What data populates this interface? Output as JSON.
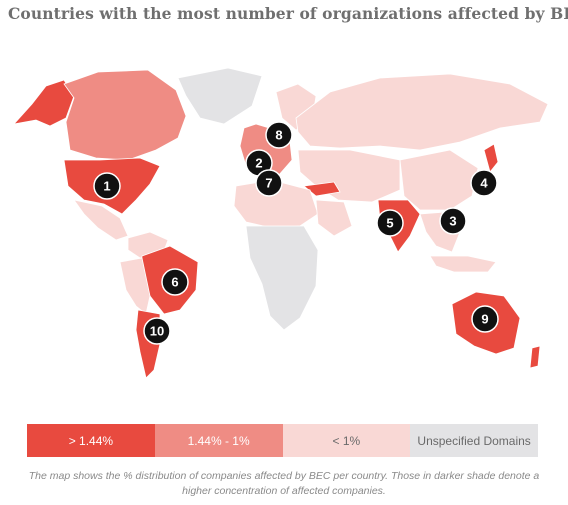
{
  "title": "Countries with the most number of organizations affected by BEC",
  "colors": {
    "high": "#e84a3f",
    "mid": "#ef8c84",
    "low": "#f9d8d5",
    "unspecified": "#e3e3e5"
  },
  "legend": [
    {
      "label": "> 1.44%",
      "color": "#e84a3f"
    },
    {
      "label": "1.44% - 1%",
      "color": "#ef8c84"
    },
    {
      "label": "< 1%",
      "color": "#f9d8d5"
    },
    {
      "label": "Unspecified Domains",
      "color": "#e3e3e5"
    }
  ],
  "markers": [
    "1",
    "2",
    "3",
    "4",
    "5",
    "6",
    "7",
    "8",
    "9",
    "10"
  ],
  "note": "The map shows the % distribution of companies affected by BEC per country. Those in darker shade denote a higher concentration of affected companies."
}
